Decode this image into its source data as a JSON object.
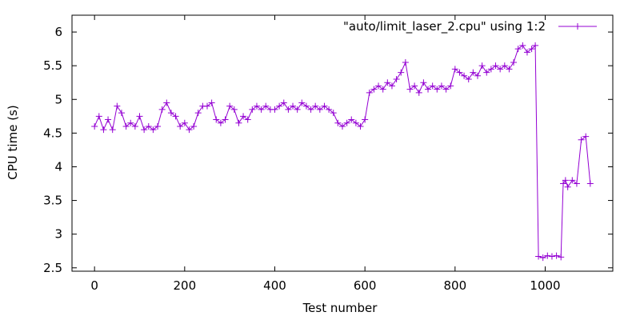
{
  "chart_data": {
    "type": "line",
    "title": "",
    "xlabel": "Test number",
    "ylabel": "CPU time (s)",
    "xlim": [
      -50,
      1150
    ],
    "ylim": [
      2.45,
      6.25
    ],
    "x_ticks": [
      "0",
      "200",
      "400",
      "600",
      "800",
      "1000"
    ],
    "y_ticks": [
      "2.5",
      "3",
      "3.5",
      "4",
      "4.5",
      "5",
      "5.5",
      "6"
    ],
    "grid": false,
    "legend_position": "top-right",
    "point_marker": "plus",
    "series": [
      {
        "name": "\"auto/limit_laser_2.cpu\" using 1:2",
        "color": "#9400d3",
        "x": [
          0,
          10,
          20,
          30,
          40,
          50,
          60,
          70,
          80,
          90,
          100,
          110,
          120,
          130,
          140,
          150,
          160,
          170,
          180,
          190,
          200,
          210,
          220,
          230,
          240,
          250,
          260,
          270,
          280,
          290,
          300,
          310,
          320,
          330,
          340,
          350,
          360,
          370,
          380,
          390,
          400,
          410,
          420,
          430,
          440,
          450,
          460,
          470,
          480,
          490,
          500,
          510,
          520,
          530,
          540,
          550,
          560,
          570,
          580,
          590,
          600,
          610,
          620,
          630,
          640,
          650,
          660,
          670,
          680,
          690,
          700,
          710,
          720,
          730,
          740,
          750,
          760,
          770,
          780,
          790,
          800,
          810,
          820,
          830,
          840,
          850,
          860,
          870,
          880,
          890,
          900,
          910,
          920,
          930,
          940,
          950,
          960,
          970,
          978,
          985,
          995,
          1005,
          1015,
          1025,
          1035,
          1040,
          1045,
          1050,
          1060,
          1070,
          1080,
          1090,
          1100
        ],
        "values": [
          4.6,
          4.75,
          4.55,
          4.7,
          4.55,
          4.9,
          4.8,
          4.6,
          4.65,
          4.6,
          4.75,
          4.55,
          4.6,
          4.55,
          4.6,
          4.85,
          4.95,
          4.8,
          4.75,
          4.6,
          4.65,
          4.55,
          4.6,
          4.8,
          4.9,
          4.9,
          4.95,
          4.7,
          4.65,
          4.7,
          4.9,
          4.85,
          4.65,
          4.75,
          4.7,
          4.85,
          4.9,
          4.85,
          4.9,
          4.85,
          4.85,
          4.9,
          4.95,
          4.85,
          4.9,
          4.85,
          4.95,
          4.9,
          4.85,
          4.9,
          4.85,
          4.9,
          4.85,
          4.8,
          4.65,
          4.6,
          4.65,
          4.7,
          4.65,
          4.6,
          4.7,
          5.1,
          5.15,
          5.2,
          5.15,
          5.25,
          5.2,
          5.3,
          5.4,
          5.55,
          5.15,
          5.2,
          5.1,
          5.25,
          5.15,
          5.2,
          5.15,
          5.2,
          5.15,
          5.2,
          5.45,
          5.4,
          5.35,
          5.3,
          5.4,
          5.35,
          5.5,
          5.4,
          5.45,
          5.5,
          5.45,
          5.5,
          5.45,
          5.55,
          5.75,
          5.8,
          5.7,
          5.75,
          5.8,
          2.67,
          2.65,
          2.68,
          2.67,
          2.68,
          2.66,
          3.75,
          3.8,
          3.7,
          3.8,
          3.75,
          4.4,
          4.45,
          3.75
        ]
      }
    ]
  }
}
